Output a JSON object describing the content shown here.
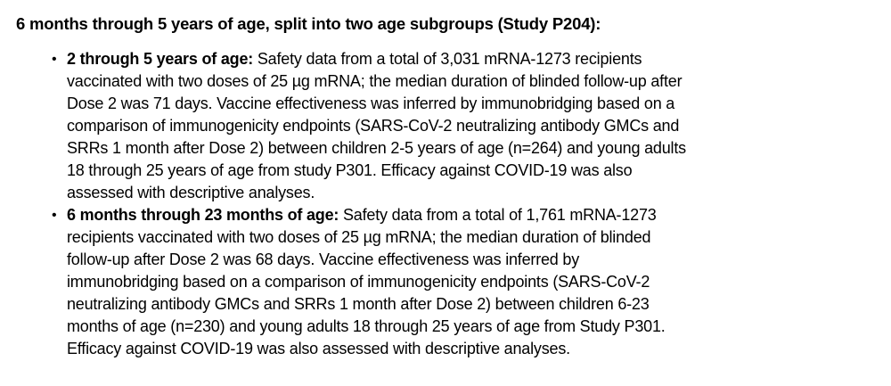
{
  "heading": "6 months through 5 years of age, split into two age subgroups (Study P204):",
  "bullet_char": "•",
  "bullets": [
    {
      "label": "2 through 5 years of age:",
      "lines": [
        " Safety data from a total of 3,031 mRNA-1273 recipients",
        "vaccinated with two doses of 25 µg mRNA; the median duration of blinded follow-up after",
        "Dose 2 was 71 days. Vaccine effectiveness was inferred by immunobridging based on a",
        "comparison of immunogenicity endpoints (SARS-CoV-2 neutralizing antibody GMCs and",
        "SRRs 1 month after Dose 2) between children 2-5 years of age (n=264) and young adults",
        "18 through 25 years of age from study P301. Efficacy against COVID-19 was also",
        "assessed with descriptive analyses."
      ]
    },
    {
      "label": "6 months through 23 months of age:",
      "lines": [
        " Safety data from a total of 1,761 mRNA-1273",
        "recipients vaccinated with two doses of 25 µg mRNA; the median duration of blinded",
        "follow-up after Dose 2 was 68 days. Vaccine effectiveness was inferred by",
        "immunobridging based on a comparison of immunogenicity endpoints (SARS-CoV-2",
        "neutralizing antibody GMCs and SRRs 1 month after Dose 2) between children 6-23",
        "months of age (n=230) and young adults 18 through 25 years of age from Study P301.",
        "Efficacy against COVID-19 was also assessed with descriptive analyses."
      ]
    }
  ]
}
